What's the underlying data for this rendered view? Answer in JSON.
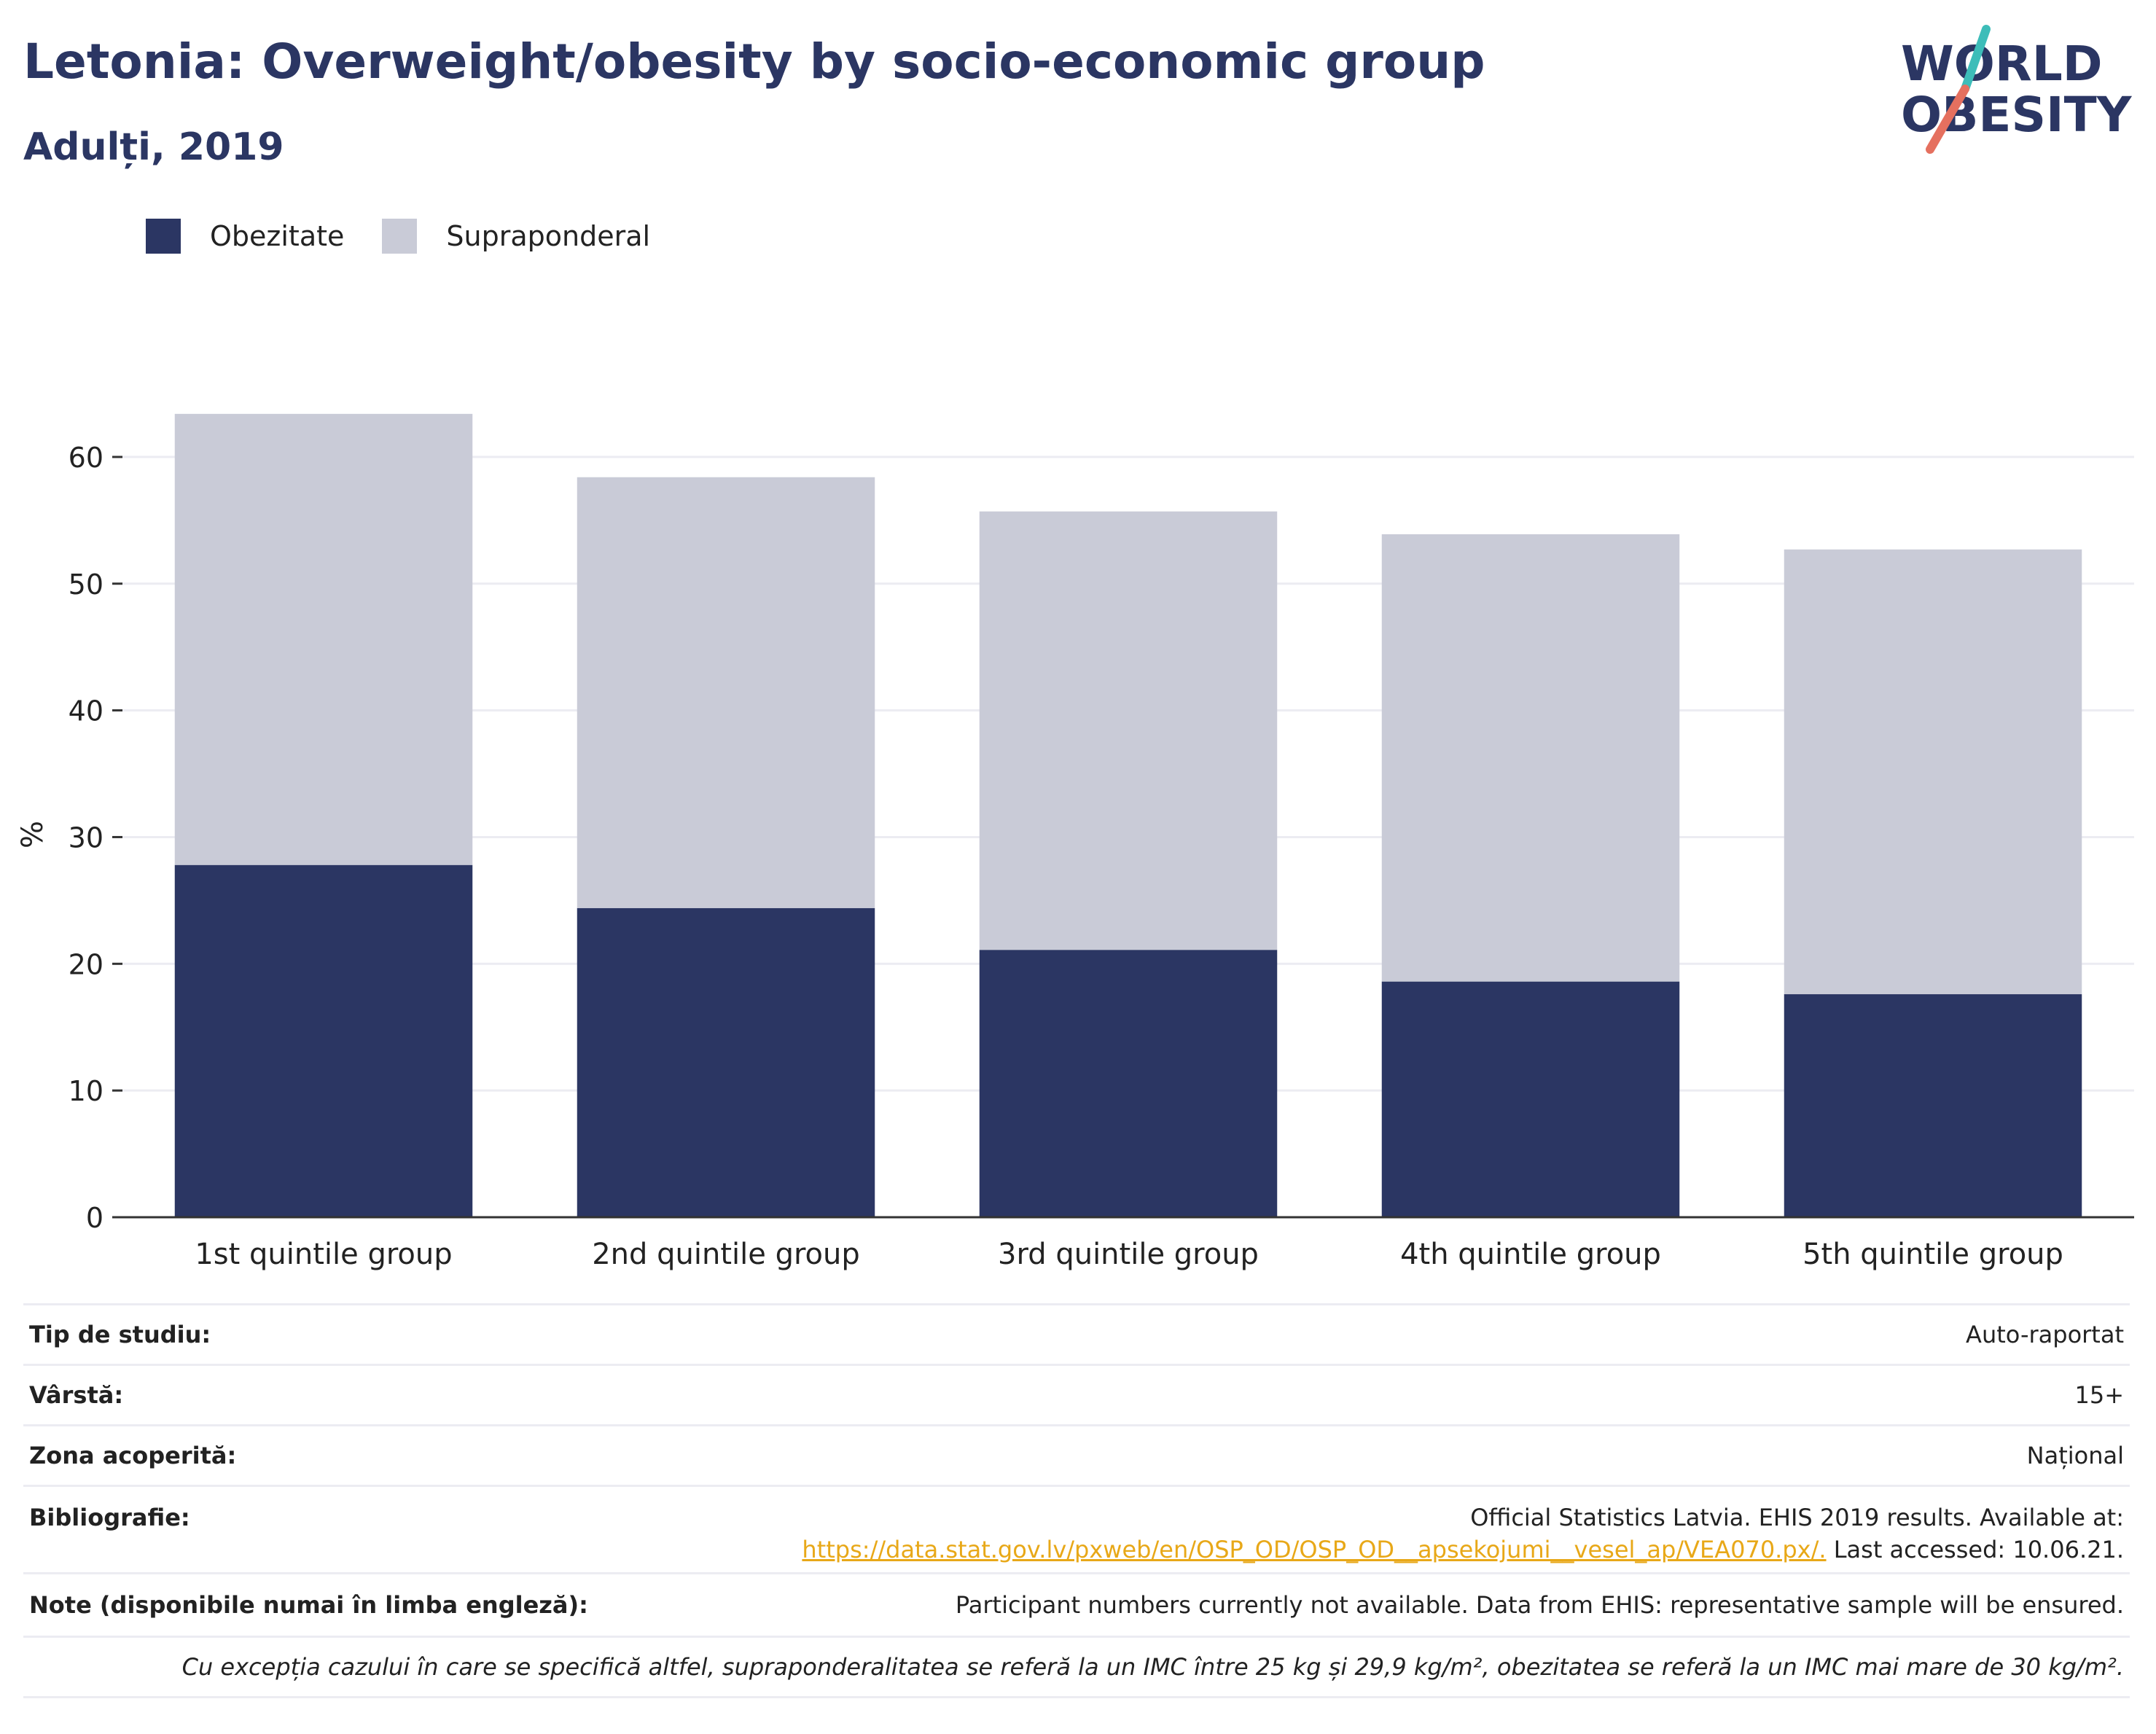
{
  "header": {
    "title": "Letonia: Overweight/obesity by socio-economic group",
    "subtitle": "Adulți, 2019"
  },
  "logo": {
    "line1": "WORLD",
    "line2": "OBESITY"
  },
  "colors": {
    "obesity": "#2b3663",
    "overweight": "#c9cbd7",
    "accent_teal": "#3dbdb9",
    "accent_red": "#e5705f"
  },
  "chart_data": {
    "type": "bar",
    "stacked": true,
    "categories": [
      "1st quintile group",
      "2nd quintile group",
      "3rd quintile group",
      "4th quintile group",
      "5th quintile group"
    ],
    "series": [
      {
        "name": "Obezitate",
        "values": [
          27.8,
          24.4,
          21.1,
          18.6,
          17.6
        ]
      },
      {
        "name": "Supraponderal",
        "values": [
          35.6,
          34.0,
          34.6,
          35.3,
          35.1
        ]
      }
    ],
    "ylabel": "%",
    "ylim": [
      0,
      65
    ],
    "yticks": [
      0,
      10,
      20,
      30,
      40,
      50,
      60
    ],
    "grid": true,
    "legend": "top-left"
  },
  "info": {
    "study_type": {
      "label": "Tip de studiu:",
      "value": "Auto-raportat"
    },
    "age": {
      "label": "Vârstă:",
      "value": "15+"
    },
    "coverage": {
      "label": "Zona acoperită:",
      "value": "Național"
    },
    "bibliography": {
      "label": "Bibliografie:",
      "line1": "Official Statistics Latvia. EHIS 2019 results. Available at:",
      "link": "https://data.stat.gov.lv/pxweb/en/OSP_OD/OSP_OD__apsekojumi__vesel_ap/VEA070.px/.",
      "after_link": " Last accessed: 10.06.21."
    },
    "notes": {
      "label": "Note (disponibile numai în limba engleză):",
      "value": "Participant numbers currently not available. Data from EHIS: representative sample will be ensured."
    },
    "footnote": "Cu excepția cazului în care se specifică altfel, supraponderalitatea se referă la un IMC între 25 kg și 29,9 kg/m², obezitatea se referă la un IMC mai mare de 30 kg/m²."
  }
}
